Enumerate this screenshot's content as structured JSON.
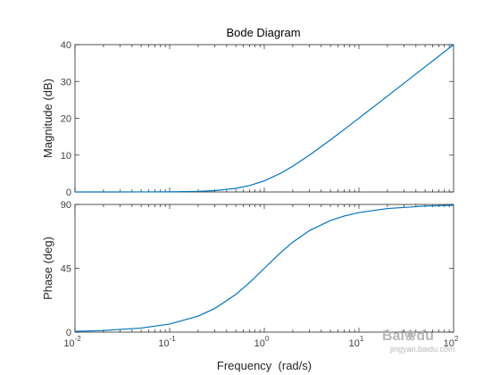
{
  "chart_data": [
    {
      "type": "line",
      "title": "Bode Diagram",
      "ylabel": "Magnitude (dB)",
      "xscale": "log",
      "xlim": [
        0.01,
        100
      ],
      "ylim": [
        0,
        40
      ],
      "yticks": [
        0,
        10,
        20,
        30,
        40
      ],
      "grid": false,
      "series": [
        {
          "color": "#0072BD",
          "x": [
            0.01,
            0.02,
            0.05,
            0.1,
            0.2,
            0.3,
            0.5,
            0.7,
            1,
            1.5,
            2,
            3,
            5,
            7,
            10,
            20,
            50,
            100
          ],
          "y": [
            0.0,
            0.0,
            0.01,
            0.04,
            0.17,
            0.37,
            0.97,
            1.74,
            3.01,
            5.12,
            6.99,
            10.0,
            14.15,
            16.99,
            20.04,
            26.02,
            33.98,
            40.0
          ]
        }
      ]
    },
    {
      "type": "line",
      "ylabel": "Phase (deg)",
      "xlabel": "Frequency  (rad/s)",
      "xscale": "log",
      "xlim": [
        0.01,
        100
      ],
      "ylim": [
        0,
        90
      ],
      "yticks": [
        0,
        45,
        90
      ],
      "xticks": [
        {
          "value": 0.01,
          "base": "10",
          "exp": "-2"
        },
        {
          "value": 0.1,
          "base": "10",
          "exp": "-1"
        },
        {
          "value": 1,
          "base": "10",
          "exp": "0"
        },
        {
          "value": 10,
          "base": "10",
          "exp": "1"
        },
        {
          "value": 100,
          "base": "10",
          "exp": "2"
        }
      ],
      "grid": false,
      "series": [
        {
          "color": "#0072BD",
          "x": [
            0.01,
            0.02,
            0.05,
            0.1,
            0.2,
            0.3,
            0.5,
            0.7,
            1,
            1.5,
            2,
            3,
            5,
            7,
            10,
            20,
            50,
            100
          ],
          "y": [
            0.57,
            1.15,
            2.86,
            5.71,
            11.31,
            16.7,
            26.57,
            34.99,
            45.0,
            56.31,
            63.43,
            71.57,
            78.69,
            81.87,
            84.29,
            87.14,
            88.85,
            89.43
          ]
        }
      ]
    }
  ],
  "watermark": {
    "brand": "Bai",
    "brand_suffix": "du",
    "paw": "❀",
    "site": "jingyan.baidu.com"
  }
}
